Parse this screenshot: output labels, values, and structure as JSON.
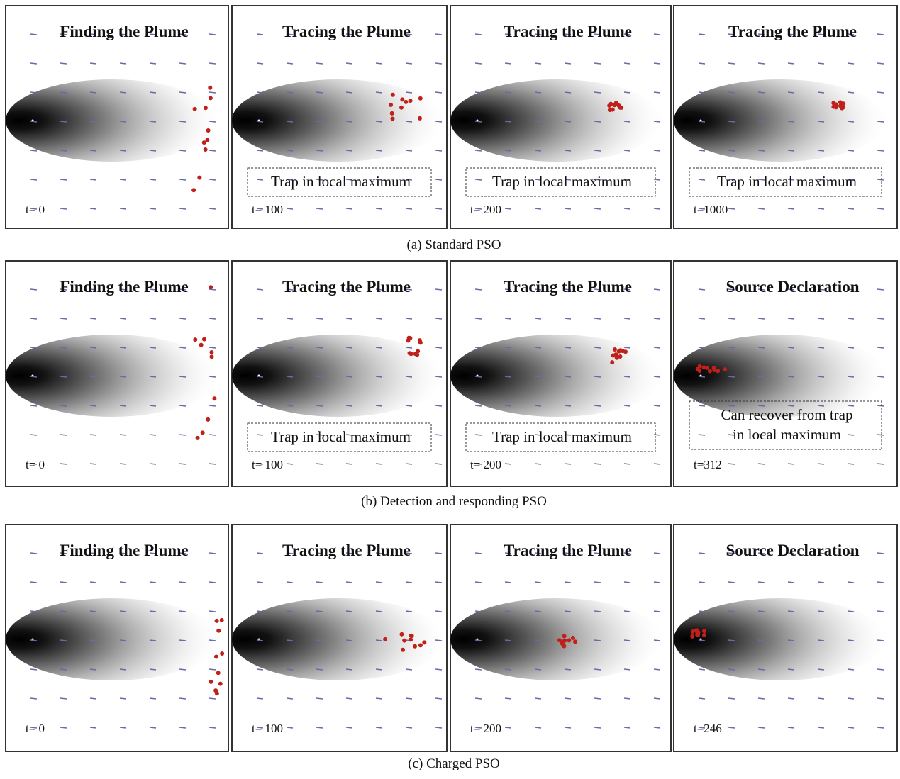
{
  "rows": [
    {
      "caption": "(a) Standard PSO",
      "panels": [
        {
          "title": "Finding the Plume",
          "time": "t= 0"
        },
        {
          "title": "Tracing the Plume",
          "time": "t= 100",
          "annotation": [
            "Trap in local maximum"
          ]
        },
        {
          "title": "Tracing the Plume",
          "time": "t= 200",
          "annotation": [
            "Trap in local maximum"
          ]
        },
        {
          "title": "Tracing the Plume",
          "time": "t=1000",
          "annotation": [
            "Trap in local maximum"
          ]
        }
      ]
    },
    {
      "caption": "(b) Detection and responding PSO",
      "panels": [
        {
          "title": "Finding the Plume",
          "time": "t= 0"
        },
        {
          "title": "Tracing the Plume",
          "time": "t= 100",
          "annotation": [
            "Trap in local maximum"
          ]
        },
        {
          "title": "Tracing the Plume",
          "time": "t= 200",
          "annotation": [
            "Trap in local maximum"
          ]
        },
        {
          "title": "Source Declaration",
          "time": "t=312",
          "annotation": [
            "Can recover from trap",
            "in local maximum"
          ]
        }
      ]
    },
    {
      "caption": "(c) Charged PSO",
      "panels": [
        {
          "title": "Finding the Plume",
          "time": "t= 0"
        },
        {
          "title": "Tracing the Plume",
          "time": "t= 100"
        },
        {
          "title": "Tracing the Plume",
          "time": "t= 200"
        },
        {
          "title": "Source Declaration",
          "time": "t=246"
        }
      ]
    }
  ]
}
